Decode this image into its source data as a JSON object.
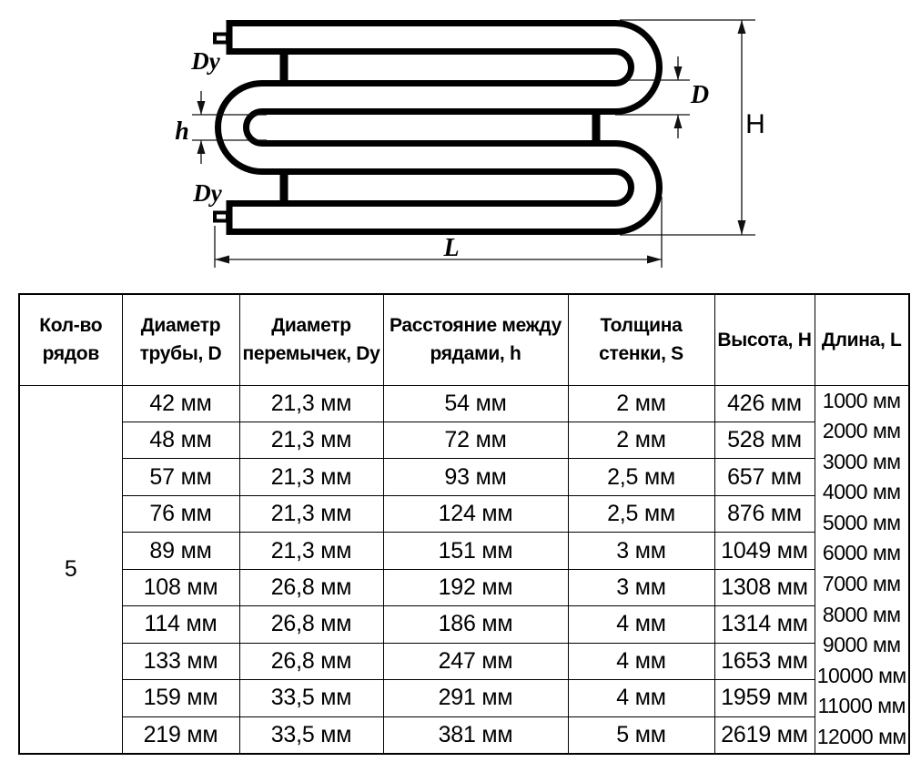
{
  "diagram": {
    "labels": {
      "dy_top": "Dy",
      "dy_bottom": "Dy",
      "row_spacing": "h",
      "pipe_diameter": "D",
      "height": "H",
      "length": "L"
    }
  },
  "table": {
    "headers": [
      [
        "Кол-во",
        "рядов"
      ],
      [
        "Диаметр",
        "трубы, D"
      ],
      [
        "Диаметр",
        "перемычек, Dy"
      ],
      [
        "Расстояние между",
        "рядами, h"
      ],
      [
        "Толщина",
        "стенки, S"
      ],
      [
        "Высота, H"
      ],
      [
        "Длина, L"
      ]
    ],
    "rows_count": "5",
    "rows": [
      [
        "42 мм",
        "21,3 мм",
        "54 мм",
        "2 мм",
        "426 мм"
      ],
      [
        "48 мм",
        "21,3 мм",
        "72 мм",
        "2 мм",
        "528 мм"
      ],
      [
        "57 мм",
        "21,3 мм",
        "93 мм",
        "2,5 мм",
        "657 мм"
      ],
      [
        "76 мм",
        "21,3 мм",
        "124 мм",
        "2,5 мм",
        "876 мм"
      ],
      [
        "89 мм",
        "21,3 мм",
        "151 мм",
        "3 мм",
        "1049 мм"
      ],
      [
        "108 мм",
        "26,8 мм",
        "192 мм",
        "3 мм",
        "1308 мм"
      ],
      [
        "114 мм",
        "26,8 мм",
        "186 мм",
        "4 мм",
        "1314 мм"
      ],
      [
        "133 мм",
        "26,8 мм",
        "247 мм",
        "4 мм",
        "1653 мм"
      ],
      [
        "159 мм",
        "33,5 мм",
        "291 мм",
        "4 мм",
        "1959 мм"
      ],
      [
        "219 мм",
        "33,5 мм",
        "381 мм",
        "5 мм",
        "2619 мм"
      ]
    ],
    "lengths": [
      "1000 мм",
      "2000 мм",
      "3000 мм",
      "4000 мм",
      "5000 мм",
      "6000 мм",
      "7000 мм",
      "8000 мм",
      "9000 мм",
      "10000 мм",
      "11000 мм",
      "12000 мм"
    ]
  }
}
